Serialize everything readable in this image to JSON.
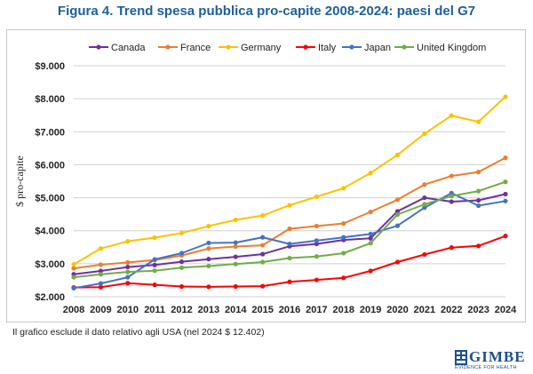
{
  "page": {
    "title": "Figura 4. Trend spesa pubblica pro-capite 2008-2024: paesi del G7",
    "note": "Il grafico esclude il dato relativo agli USA (nel 2024 $ 12.402)",
    "logo": {
      "name": "GIMBE",
      "tagline": "EVIDENCE FOR HEALTH"
    }
  },
  "chart_data": {
    "type": "line",
    "title": "Figura 4. Trend spesa pubblica pro-capite 2008-2024: paesi del G7",
    "xlabel": "",
    "ylabel": "$ pro-capite",
    "ylim": [
      2000,
      9000
    ],
    "yticks": [
      2000,
      3000,
      4000,
      5000,
      6000,
      7000,
      8000,
      9000
    ],
    "ytick_labels": [
      "$2.000",
      "$3.000",
      "$4.000",
      "$5.000",
      "$6.000",
      "$7.000",
      "$8.000",
      "$9.000"
    ],
    "grid": "horizontal",
    "legend": "top",
    "x": [
      "2008",
      "2009",
      "2010",
      "2011",
      "2012",
      "2013",
      "2014",
      "2015",
      "2016",
      "2017",
      "2018",
      "2019",
      "2020",
      "2021",
      "2022",
      "2023",
      "2024"
    ],
    "series": [
      {
        "name": "Canada",
        "color": "#7030a0",
        "values": [
          2680,
          2780,
          2900,
          2960,
          3060,
          3140,
          3210,
          3290,
          3530,
          3600,
          3720,
          3770,
          4590,
          5000,
          4880,
          4920,
          5110
        ]
      },
      {
        "name": "France",
        "color": "#ed7d31",
        "values": [
          2860,
          2970,
          3040,
          3110,
          3250,
          3460,
          3520,
          3560,
          4060,
          4140,
          4220,
          4570,
          4940,
          5400,
          5660,
          5780,
          6210
        ]
      },
      {
        "name": "Germany",
        "color": "#ffc000",
        "values": [
          2980,
          3460,
          3680,
          3790,
          3930,
          4140,
          4330,
          4460,
          4770,
          5030,
          5290,
          5750,
          6300,
          6940,
          7490,
          7300,
          8060
        ]
      },
      {
        "name": "Italy",
        "color": "#ff0000",
        "values": [
          2280,
          2290,
          2410,
          2360,
          2310,
          2300,
          2310,
          2320,
          2450,
          2510,
          2570,
          2780,
          3050,
          3280,
          3490,
          3540,
          3840
        ]
      },
      {
        "name": "Japan",
        "color": "#4472c4",
        "values": [
          2260,
          2400,
          2590,
          3130,
          3320,
          3630,
          3640,
          3800,
          3600,
          3700,
          3800,
          3900,
          4150,
          4700,
          5140,
          4760,
          4900
        ]
      },
      {
        "name": "United Kingdom",
        "color": "#70ad47",
        "values": [
          2590,
          2680,
          2750,
          2790,
          2880,
          2930,
          2990,
          3050,
          3170,
          3220,
          3320,
          3620,
          4490,
          4800,
          5050,
          5200,
          5480
        ]
      }
    ]
  }
}
